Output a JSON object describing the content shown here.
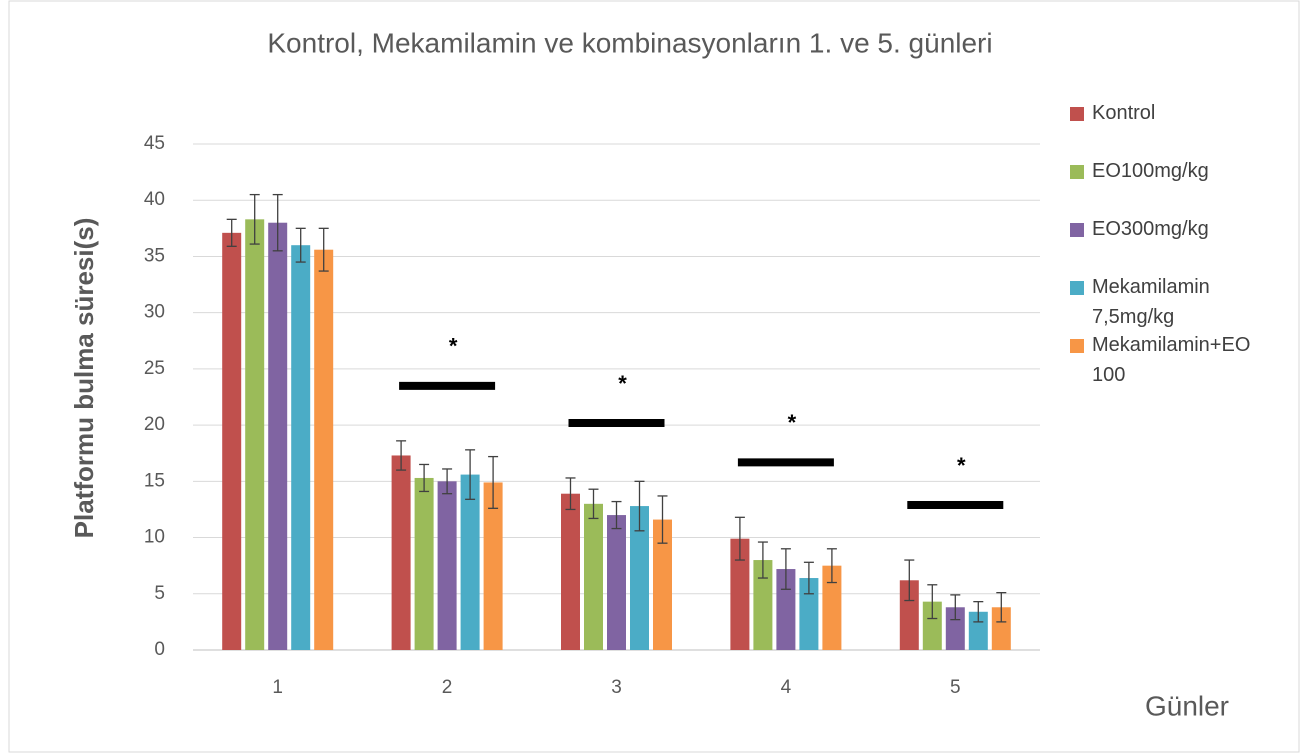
{
  "chart_data": {
    "type": "bar",
    "title": "Kontrol, Mekamilamin ve kombinasyonların 1. ve 5. günleri",
    "y_label": "Platformu bulma süresi(s)",
    "x_label": "Günler",
    "categories": [
      "1",
      "2",
      "3",
      "4",
      "5"
    ],
    "series": [
      {
        "name": "Kontrol",
        "color": "#c0504d",
        "values": [
          37.1,
          17.3,
          13.9,
          9.9,
          6.2
        ],
        "errors": [
          1.2,
          1.3,
          1.4,
          1.9,
          1.8
        ]
      },
      {
        "name": "EO100mg/kg",
        "color": "#9bbb59",
        "values": [
          38.3,
          15.3,
          13,
          8,
          4.3
        ],
        "errors": [
          2.2,
          1.2,
          1.3,
          1.6,
          1.5
        ]
      },
      {
        "name": "EO300mg/kg",
        "color": "#8064a2",
        "values": [
          38,
          15,
          12,
          7.2,
          3.8
        ],
        "errors": [
          2.5,
          1.1,
          1.2,
          1.8,
          1.1
        ]
      },
      {
        "name": "Mekamilamin 7,5mg/kg",
        "color": "#4bacc6",
        "values": [
          36,
          15.6,
          12.8,
          6.4,
          3.4
        ],
        "errors": [
          1.5,
          2.2,
          2.2,
          1.4,
          0.9
        ]
      },
      {
        "name": "Mekamilamin+EO 100",
        "color": "#f79646",
        "values": [
          35.6,
          14.9,
          11.6,
          7.5,
          3.8
        ],
        "errors": [
          1.9,
          2.3,
          2.1,
          1.5,
          1.3
        ]
      }
    ],
    "annotations": [
      "*",
      "*",
      "*",
      "*"
    ],
    "ylim": [
      0,
      45
    ],
    "yticks": [
      0,
      5,
      10,
      15,
      20,
      25,
      30,
      35,
      40,
      45
    ],
    "grid": true
  }
}
